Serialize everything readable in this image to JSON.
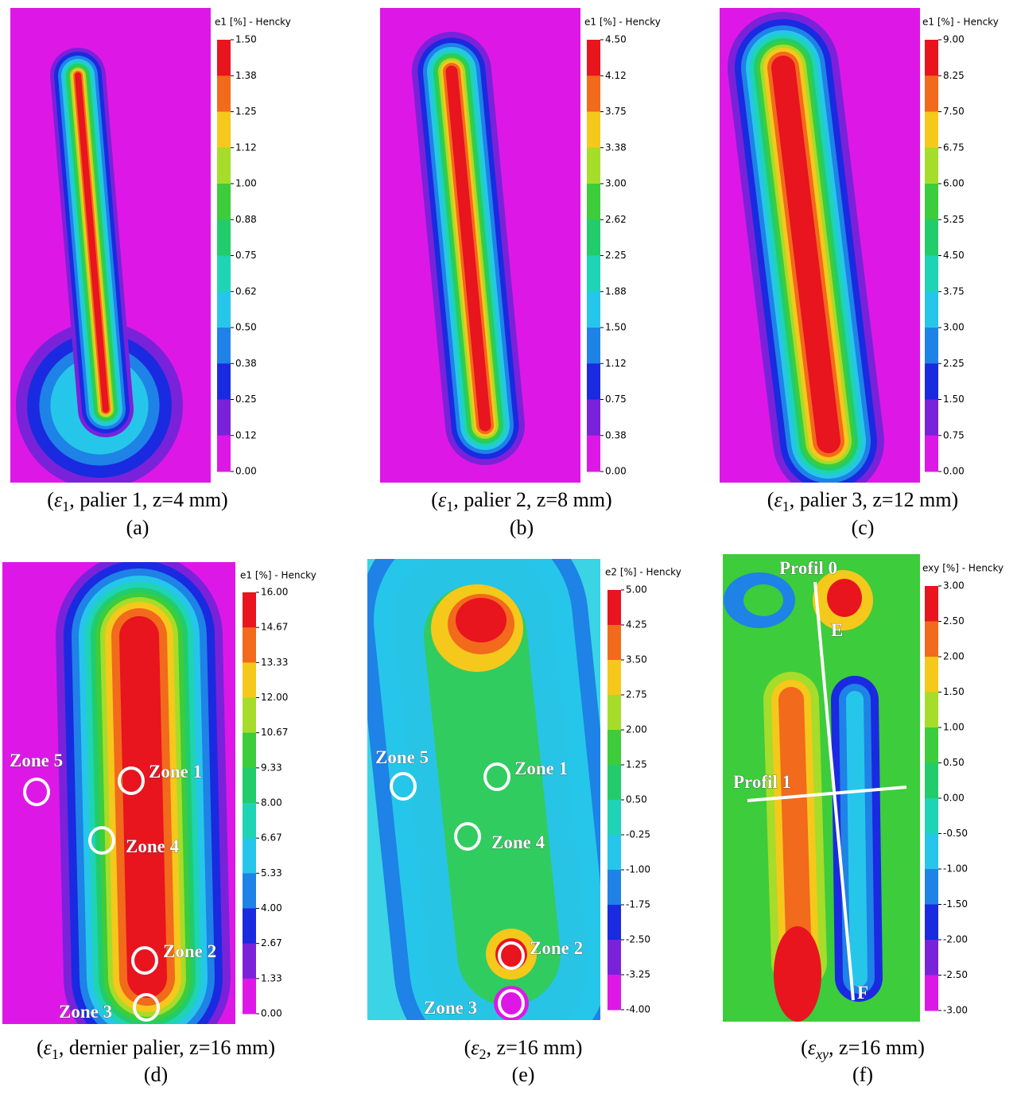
{
  "panels": [
    {
      "letter": "(a)",
      "colorbar": {
        "title": "e1 [%] - Hencky",
        "ticks": [
          "1.50",
          "1.38",
          "1.25",
          "1.12",
          "1.00",
          "0.88",
          "0.75",
          "0.62",
          "0.50",
          "0.38",
          "0.25",
          "0.12",
          "0.00"
        ]
      },
      "caption": {
        "open": "(",
        "symbol": "ε",
        "sub": "1",
        "rest": ", palier 1, z=4 mm)"
      }
    },
    {
      "letter": "(b)",
      "colorbar": {
        "title": "e1 [%] - Hencky",
        "ticks": [
          "4.50",
          "4.12",
          "3.75",
          "3.38",
          "3.00",
          "2.62",
          "2.25",
          "1.88",
          "1.50",
          "1.12",
          "0.75",
          "0.38",
          "0.00"
        ]
      },
      "caption": {
        "open": "(",
        "symbol": "ε",
        "sub": "1",
        "rest": ", palier 2, z=8 mm)"
      }
    },
    {
      "letter": "(c)",
      "colorbar": {
        "title": "e1 [%] - Hencky",
        "ticks": [
          "9.00",
          "8.25",
          "7.50",
          "6.75",
          "6.00",
          "5.25",
          "4.50",
          "3.75",
          "3.00",
          "2.25",
          "1.50",
          "0.75",
          "0.00"
        ]
      },
      "caption": {
        "open": "(",
        "symbol": "ε",
        "sub": "1",
        "rest": ", palier 3, z=12 mm)"
      }
    },
    {
      "letter": "(d)",
      "colorbar": {
        "title": "e1 [%] - Hencky",
        "ticks": [
          "16.00",
          "14.67",
          "13.33",
          "12.00",
          "10.67",
          "9.33",
          "8.00",
          "6.67",
          "5.33",
          "4.00",
          "2.67",
          "1.33",
          "0.00"
        ]
      },
      "caption": {
        "open": "(",
        "symbol": "ε",
        "sub": "1",
        "rest": ", dernier palier, z=16 mm)"
      },
      "annotations": [
        "Zone 1",
        "Zone 5",
        "Zone 4",
        "Zone 2",
        "Zone 3"
      ]
    },
    {
      "letter": "(e)",
      "colorbar": {
        "title": "e2 [%] - Hencky",
        "ticks": [
          "5.00",
          "4.25",
          "3.50",
          "2.75",
          "2.00",
          "1.25",
          "0.50",
          "-0.25",
          "-1.00",
          "-1.75",
          "-2.50",
          "-3.25",
          "-4.00"
        ]
      },
      "caption": {
        "open": "(",
        "symbol": "ε",
        "sub": "2",
        "rest": ", z=16 mm)"
      },
      "annotations": [
        "Zone 1",
        "Zone 5",
        "Zone 4",
        "Zone 2",
        "Zone 3"
      ]
    },
    {
      "letter": "(f)",
      "colorbar": {
        "title": "exy [%] - Hencky",
        "ticks": [
          "3.00",
          "2.50",
          "2.00",
          "1.50",
          "1.00",
          "0.50",
          "0.00",
          "-0.50",
          "-1.00",
          "-1.50",
          "-2.00",
          "-2.50",
          "-3.00"
        ]
      },
      "caption": {
        "open": "(",
        "symbol": "ε",
        "sub": "xy",
        "rest": ", z=16 mm)"
      },
      "annotations": [
        "Profil 0",
        "E",
        "Profil 1",
        "F"
      ]
    }
  ]
}
